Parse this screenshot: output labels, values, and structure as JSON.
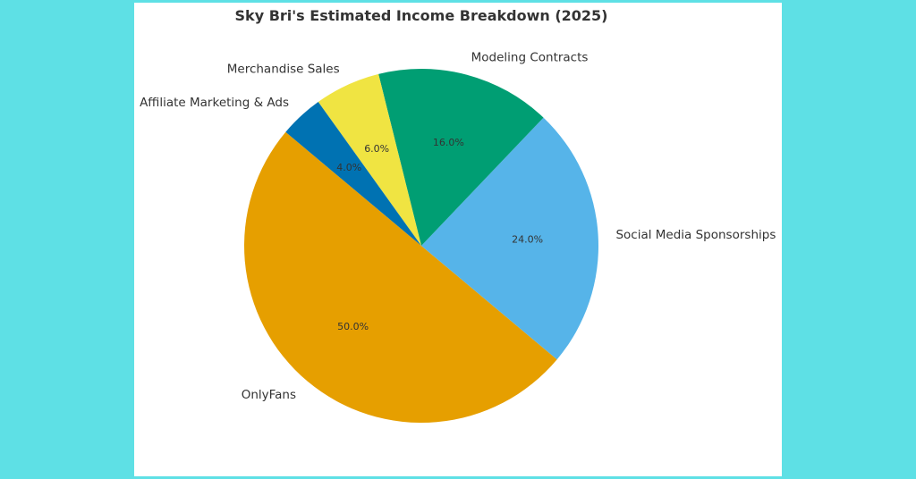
{
  "chart_data": {
    "type": "pie",
    "title": "Sky Bri's Estimated Income Breakdown (2025)",
    "slices": [
      {
        "label": "OnlyFans",
        "value": 50.0,
        "pct_label": "50.0%",
        "color": "#e69f00"
      },
      {
        "label": "Social Media Sponsorships",
        "value": 24.0,
        "pct_label": "24.0%",
        "color": "#56b4e9"
      },
      {
        "label": "Modeling Contracts",
        "value": 16.0,
        "pct_label": "16.0%",
        "color": "#009e73"
      },
      {
        "label": "Merchandise Sales",
        "value": 6.0,
        "pct_label": "6.0%",
        "color": "#f0e442"
      },
      {
        "label": "Affiliate Marketing & Ads",
        "value": 4.0,
        "pct_label": "4.0%",
        "color": "#0072b2"
      }
    ],
    "start_angle_deg": 140,
    "direction": "counterclockwise"
  },
  "colors": {
    "page_background": "#5ee0e5",
    "card_background": "#ffffff"
  }
}
